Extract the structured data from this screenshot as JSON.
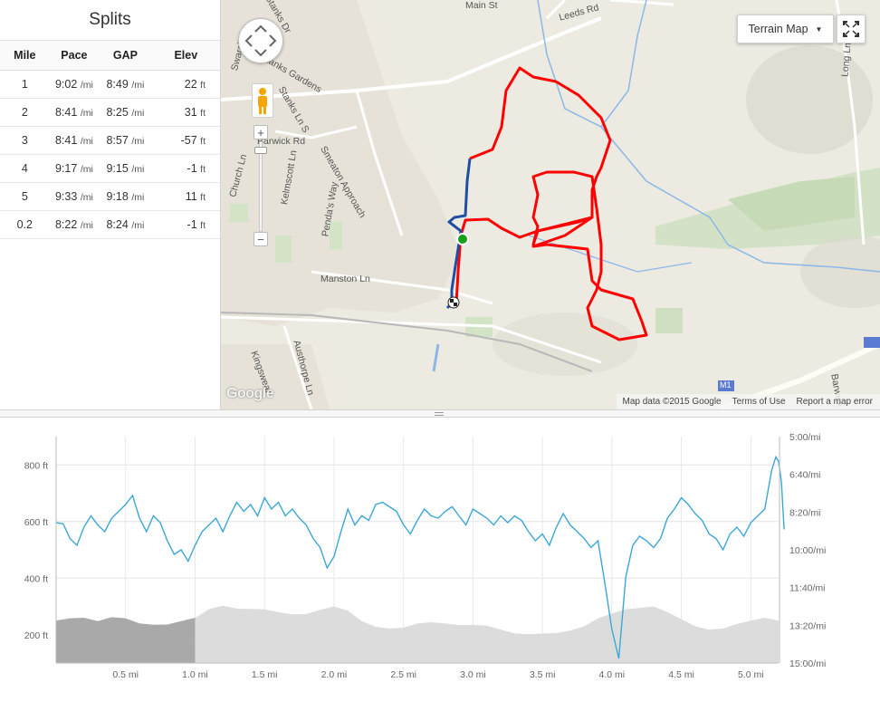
{
  "splits": {
    "title": "Splits",
    "columns": [
      "Mile",
      "Pace",
      "GAP",
      "Elev"
    ],
    "rows": [
      {
        "mile": "1",
        "pace": "9:02",
        "gap": "8:49",
        "elev": "22"
      },
      {
        "mile": "2",
        "pace": "8:41",
        "gap": "8:25",
        "elev": "31"
      },
      {
        "mile": "3",
        "pace": "8:41",
        "gap": "8:57",
        "elev": "-57"
      },
      {
        "mile": "4",
        "pace": "9:17",
        "gap": "9:15",
        "elev": "-1"
      },
      {
        "mile": "5",
        "pace": "9:33",
        "gap": "9:18",
        "elev": "11"
      },
      {
        "mile": "0.2",
        "pace": "8:22",
        "gap": "8:24",
        "elev": "-1"
      }
    ],
    "pace_unit": "/mi",
    "elev_unit": "ft"
  },
  "map": {
    "map_type_label": "Terrain Map",
    "zoom_in": "+",
    "zoom_out": "−",
    "google_logo": "Google",
    "footer": {
      "data": "Map data ©2015 Google",
      "terms": "Terms of Use",
      "report": "Report a map error"
    },
    "road_labels": [
      "Main St",
      "Leeds Rd",
      "Stanks Dr",
      "Swarcliffe",
      "Stanks Gardens",
      "Stanks Ln S",
      "Barwick Rd",
      "Church Ln",
      "Kelmscott Ln",
      "Smeaton Approach",
      "Penda's Way",
      "Manston Ln",
      "Austhorpe Ln",
      "Kingswear",
      "Long Ln",
      "Barwick",
      "M1"
    ],
    "colors": {
      "route_red": "#ff0000",
      "route_blue": "#1f4fa3",
      "start_green": "#19a019"
    }
  },
  "chart_data": {
    "type": "line+area",
    "x_ticks": [
      "0.5 mi",
      "1.0 mi",
      "1.5 mi",
      "2.0 mi",
      "2.5 mi",
      "3.0 mi",
      "3.5 mi",
      "4.0 mi",
      "4.5 mi",
      "5.0 mi"
    ],
    "x_tick_values": [
      0.5,
      1.0,
      1.5,
      2.0,
      2.5,
      3.0,
      3.5,
      4.0,
      4.5,
      5.0
    ],
    "xlim": [
      0,
      5.2
    ],
    "left_axis": {
      "ticks": [
        "200 ft",
        "400 ft",
        "600 ft",
        "800 ft"
      ],
      "tick_values": [
        200,
        400,
        600,
        800
      ],
      "ylim": [
        100,
        900
      ]
    },
    "right_axis": {
      "ticks": [
        "5:00/mi",
        "6:40/mi",
        "8:20/mi",
        "10:00/mi",
        "11:40/mi",
        "13:20/mi",
        "15:00/mi"
      ],
      "tick_values": [
        5.0,
        6.667,
        8.333,
        10.0,
        11.667,
        13.333,
        15.0
      ],
      "ylim": [
        5,
        15
      ],
      "inverted": true
    },
    "highlight_range_mi": [
      0,
      1.0
    ],
    "colors": {
      "pace_line": "#3aa7d8",
      "elevation_fill": "#dcdcdc",
      "highlight_fill": "#a9a9a9"
    },
    "elevation_ft": [
      [
        0,
        250
      ],
      [
        0.1,
        258
      ],
      [
        0.2,
        260
      ],
      [
        0.3,
        248
      ],
      [
        0.4,
        262
      ],
      [
        0.5,
        258
      ],
      [
        0.6,
        240
      ],
      [
        0.7,
        235
      ],
      [
        0.8,
        236
      ],
      [
        0.9,
        248
      ],
      [
        1.0,
        260
      ],
      [
        1.1,
        290
      ],
      [
        1.2,
        303
      ],
      [
        1.3,
        292
      ],
      [
        1.4,
        291
      ],
      [
        1.5,
        290
      ],
      [
        1.6,
        280
      ],
      [
        1.7,
        272
      ],
      [
        1.8,
        273
      ],
      [
        1.9,
        288
      ],
      [
        2.0,
        300
      ],
      [
        2.1,
        285
      ],
      [
        2.2,
        248
      ],
      [
        2.3,
        228
      ],
      [
        2.4,
        222
      ],
      [
        2.5,
        225
      ],
      [
        2.6,
        240
      ],
      [
        2.7,
        244
      ],
      [
        2.8,
        240
      ],
      [
        2.9,
        234
      ],
      [
        3.0,
        235
      ],
      [
        3.1,
        232
      ],
      [
        3.2,
        218
      ],
      [
        3.3,
        205
      ],
      [
        3.4,
        202
      ],
      [
        3.5,
        204
      ],
      [
        3.6,
        206
      ],
      [
        3.7,
        215
      ],
      [
        3.8,
        230
      ],
      [
        3.9,
        258
      ],
      [
        4.0,
        275
      ],
      [
        4.1,
        290
      ],
      [
        4.2,
        295
      ],
      [
        4.3,
        300
      ],
      [
        4.4,
        280
      ],
      [
        4.5,
        255
      ],
      [
        4.6,
        230
      ],
      [
        4.7,
        218
      ],
      [
        4.8,
        222
      ],
      [
        4.9,
        238
      ],
      [
        5.0,
        250
      ],
      [
        5.1,
        260
      ],
      [
        5.2,
        250
      ]
    ],
    "pace_min_per_mi": [
      [
        0,
        8.8
      ],
      [
        0.05,
        8.85
      ],
      [
        0.1,
        9.5
      ],
      [
        0.15,
        9.8
      ],
      [
        0.2,
        9.0
      ],
      [
        0.25,
        8.5
      ],
      [
        0.3,
        8.9
      ],
      [
        0.35,
        9.2
      ],
      [
        0.4,
        8.6
      ],
      [
        0.45,
        8.3
      ],
      [
        0.5,
        8.0
      ],
      [
        0.55,
        7.6
      ],
      [
        0.6,
        8.6
      ],
      [
        0.65,
        9.2
      ],
      [
        0.7,
        8.5
      ],
      [
        0.75,
        8.8
      ],
      [
        0.8,
        9.6
      ],
      [
        0.85,
        10.2
      ],
      [
        0.9,
        10.0
      ],
      [
        0.95,
        10.5
      ],
      [
        1.0,
        9.8
      ],
      [
        1.05,
        9.2
      ],
      [
        1.1,
        8.9
      ],
      [
        1.15,
        8.6
      ],
      [
        1.2,
        9.2
      ],
      [
        1.25,
        8.5
      ],
      [
        1.3,
        7.9
      ],
      [
        1.35,
        8.3
      ],
      [
        1.4,
        8.0
      ],
      [
        1.45,
        8.5
      ],
      [
        1.5,
        7.7
      ],
      [
        1.55,
        8.2
      ],
      [
        1.6,
        7.9
      ],
      [
        1.65,
        8.5
      ],
      [
        1.7,
        8.2
      ],
      [
        1.75,
        8.6
      ],
      [
        1.8,
        8.9
      ],
      [
        1.85,
        9.5
      ],
      [
        1.9,
        9.9
      ],
      [
        1.95,
        10.8
      ],
      [
        2.0,
        10.3
      ],
      [
        2.05,
        9.2
      ],
      [
        2.1,
        8.2
      ],
      [
        2.15,
        8.9
      ],
      [
        2.2,
        8.5
      ],
      [
        2.25,
        8.7
      ],
      [
        2.3,
        8.0
      ],
      [
        2.35,
        7.9
      ],
      [
        2.4,
        8.1
      ],
      [
        2.45,
        8.3
      ],
      [
        2.5,
        8.9
      ],
      [
        2.55,
        9.3
      ],
      [
        2.6,
        8.7
      ],
      [
        2.65,
        8.2
      ],
      [
        2.7,
        8.5
      ],
      [
        2.75,
        8.6
      ],
      [
        2.8,
        8.3
      ],
      [
        2.85,
        8.1
      ],
      [
        2.9,
        8.5
      ],
      [
        2.95,
        8.9
      ],
      [
        3.0,
        8.2
      ],
      [
        3.05,
        8.4
      ],
      [
        3.1,
        8.6
      ],
      [
        3.15,
        8.9
      ],
      [
        3.2,
        8.5
      ],
      [
        3.25,
        8.8
      ],
      [
        3.3,
        8.5
      ],
      [
        3.35,
        8.7
      ],
      [
        3.4,
        9.2
      ],
      [
        3.45,
        9.6
      ],
      [
        3.5,
        9.3
      ],
      [
        3.55,
        9.8
      ],
      [
        3.6,
        9.0
      ],
      [
        3.65,
        8.4
      ],
      [
        3.7,
        8.9
      ],
      [
        3.75,
        9.2
      ],
      [
        3.8,
        9.5
      ],
      [
        3.85,
        9.9
      ],
      [
        3.9,
        9.6
      ],
      [
        3.95,
        11.5
      ],
      [
        4.0,
        13.5
      ],
      [
        4.05,
        14.8
      ],
      [
        4.1,
        11.2
      ],
      [
        4.15,
        9.8
      ],
      [
        4.2,
        9.4
      ],
      [
        4.25,
        9.6
      ],
      [
        4.3,
        9.9
      ],
      [
        4.35,
        9.5
      ],
      [
        4.4,
        8.6
      ],
      [
        4.45,
        8.2
      ],
      [
        4.5,
        7.7
      ],
      [
        4.55,
        8.0
      ],
      [
        4.6,
        8.4
      ],
      [
        4.65,
        8.7
      ],
      [
        4.7,
        9.3
      ],
      [
        4.75,
        9.5
      ],
      [
        4.8,
        10.0
      ],
      [
        4.85,
        9.3
      ],
      [
        4.9,
        9.0
      ],
      [
        4.95,
        9.4
      ],
      [
        5.0,
        8.8
      ],
      [
        5.05,
        8.5
      ],
      [
        5.1,
        8.2
      ],
      [
        5.15,
        6.5
      ],
      [
        5.18,
        5.9
      ],
      [
        5.2,
        6.1
      ],
      [
        5.22,
        7.0
      ],
      [
        5.24,
        9.1
      ]
    ]
  }
}
